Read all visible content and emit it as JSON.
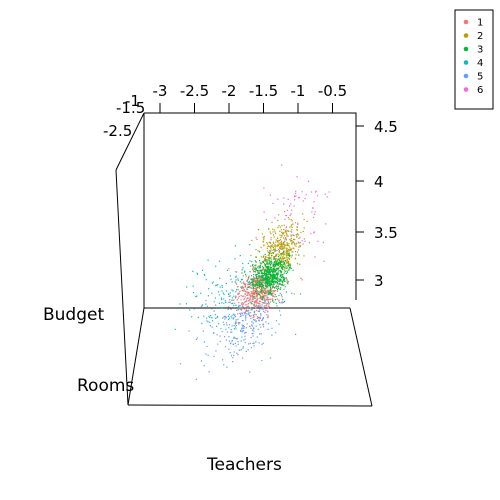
{
  "chart_data": {
    "type": "scatter",
    "title": "",
    "xlabel": "Teachers",
    "ylabel": "Rooms",
    "zlabel": "Budget",
    "x_ticks": [
      "-3",
      "-2.5",
      "-2",
      "-1.5",
      "-1",
      "-0.5"
    ],
    "z_ticks": [
      "3",
      "3.5",
      "4",
      "4.5"
    ],
    "y_ticks": [
      "-2.5",
      "-1.5",
      "-1"
    ],
    "legend_position": "top-right",
    "series": [
      {
        "name": "1",
        "color": "#F8766D",
        "center": {
          "x": -1.55,
          "y": -1.35,
          "z": 2.95
        },
        "spread": {
          "x": 0.13,
          "y": 0.12,
          "z": 0.1
        },
        "n": 520
      },
      {
        "name": "2",
        "color": "#B79F00",
        "center": {
          "x": -1.35,
          "y": -1.15,
          "z": 3.25
        },
        "spread": {
          "x": 0.12,
          "y": 0.12,
          "z": 0.12
        },
        "n": 420
      },
      {
        "name": "3",
        "color": "#00BA38",
        "center": {
          "x": -1.45,
          "y": -1.25,
          "z": 3.05
        },
        "spread": {
          "x": 0.12,
          "y": 0.1,
          "z": 0.08
        },
        "n": 620
      },
      {
        "name": "4",
        "color": "#00BFC4",
        "center": {
          "x": -1.85,
          "y": -1.4,
          "z": 2.95
        },
        "spread": {
          "x": 0.35,
          "y": 0.2,
          "z": 0.15
        },
        "n": 180
      },
      {
        "name": "5",
        "color": "#619CFF",
        "center": {
          "x": -1.65,
          "y": -1.55,
          "z": 2.75
        },
        "spread": {
          "x": 0.25,
          "y": 0.2,
          "z": 0.15
        },
        "n": 300
      },
      {
        "name": "6",
        "color": "#F564E3",
        "center": {
          "x": -1.2,
          "y": -1.1,
          "z": 3.45
        },
        "spread": {
          "x": 0.2,
          "y": 0.2,
          "z": 0.25
        },
        "n": 90
      }
    ]
  }
}
